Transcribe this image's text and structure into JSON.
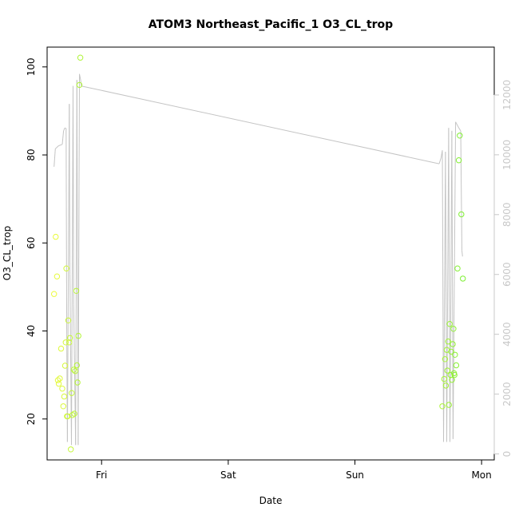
{
  "chart_data": {
    "type": "scatter",
    "title": "ATOM3 Northeast_Pacific_1 O3_CL_trop",
    "xlabel": "Date",
    "ylabel": "O3_CL_trop",
    "x_ticks": [
      "Fri",
      "Sat",
      "Sun",
      "Mon"
    ],
    "x_tick_values_days": [
      0,
      1,
      2,
      3
    ],
    "xlim_days": [
      -0.43,
      3.1
    ],
    "ylim": [
      10.7,
      104.5
    ],
    "y_ticks": [
      20,
      40,
      60,
      80,
      100
    ],
    "y2lim": [
      -200,
      13600
    ],
    "y2_ticks": [
      0,
      2000,
      4000,
      6000,
      8000,
      10000,
      12000
    ],
    "grid": false,
    "series": [
      {
        "kind": "points",
        "axis": "left",
        "points": [
          {
            "x": -0.375,
            "y": 48.4
          },
          {
            "x": -0.362,
            "y": 61.4
          },
          {
            "x": -0.352,
            "y": 52.4
          },
          {
            "x": -0.345,
            "y": 28.8
          },
          {
            "x": -0.338,
            "y": 28.0
          },
          {
            "x": -0.33,
            "y": 29.2
          },
          {
            "x": -0.32,
            "y": 36.0
          },
          {
            "x": -0.31,
            "y": 26.9
          },
          {
            "x": -0.302,
            "y": 22.9
          },
          {
            "x": -0.295,
            "y": 25.1
          },
          {
            "x": -0.288,
            "y": 32.1
          },
          {
            "x": -0.283,
            "y": 37.4
          },
          {
            "x": -0.278,
            "y": 54.2
          },
          {
            "x": -0.273,
            "y": 20.6
          },
          {
            "x": -0.268,
            "y": 20.6
          },
          {
            "x": -0.263,
            "y": 42.4
          },
          {
            "x": -0.255,
            "y": 37.4
          },
          {
            "x": -0.25,
            "y": 38.4
          },
          {
            "x": -0.243,
            "y": 13.1
          },
          {
            "x": -0.236,
            "y": 25.9
          },
          {
            "x": -0.23,
            "y": 20.9
          },
          {
            "x": -0.22,
            "y": 31.2
          },
          {
            "x": -0.215,
            "y": 21.2
          },
          {
            "x": -0.208,
            "y": 30.9
          },
          {
            "x": -0.2,
            "y": 49.1
          },
          {
            "x": -0.195,
            "y": 32.2
          },
          {
            "x": -0.19,
            "y": 28.3
          },
          {
            "x": -0.183,
            "y": 38.9
          },
          {
            "x": -0.175,
            "y": 95.9
          },
          {
            "x": -0.168,
            "y": 102.1
          },
          {
            "x": 2.69,
            "y": 22.9
          },
          {
            "x": 2.705,
            "y": 29.1
          },
          {
            "x": 2.712,
            "y": 33.6
          },
          {
            "x": 2.718,
            "y": 27.6
          },
          {
            "x": 2.725,
            "y": 35.7
          },
          {
            "x": 2.73,
            "y": 31.0
          },
          {
            "x": 2.736,
            "y": 37.6
          },
          {
            "x": 2.742,
            "y": 23.2
          },
          {
            "x": 2.748,
            "y": 41.6
          },
          {
            "x": 2.755,
            "y": 30.0
          },
          {
            "x": 2.76,
            "y": 35.3
          },
          {
            "x": 2.766,
            "y": 28.9
          },
          {
            "x": 2.772,
            "y": 37.0
          },
          {
            "x": 2.778,
            "y": 40.5
          },
          {
            "x": 2.782,
            "y": 30.4
          },
          {
            "x": 2.786,
            "y": 30.0
          },
          {
            "x": 2.79,
            "y": 34.6
          },
          {
            "x": 2.8,
            "y": 32.2
          },
          {
            "x": 2.81,
            "y": 54.2
          },
          {
            "x": 2.82,
            "y": 78.8
          },
          {
            "x": 2.828,
            "y": 84.4
          },
          {
            "x": 2.84,
            "y": 66.5
          },
          {
            "x": 2.852,
            "y": 51.9
          }
        ]
      },
      {
        "kind": "line",
        "axis": "right",
        "points": [
          [
            -0.375,
            9600
          ],
          [
            -0.365,
            10200
          ],
          [
            -0.34,
            10300
          ],
          [
            -0.31,
            10350
          ],
          [
            -0.3,
            10800
          ],
          [
            -0.29,
            10900
          ],
          [
            -0.28,
            10880
          ],
          [
            -0.275,
            4000
          ],
          [
            -0.27,
            400
          ],
          [
            -0.255,
            11700
          ],
          [
            -0.25,
            6000
          ],
          [
            -0.238,
            300
          ],
          [
            -0.225,
            12300
          ],
          [
            -0.22,
            5000
          ],
          [
            -0.205,
            300
          ],
          [
            -0.195,
            12500
          ],
          [
            -0.185,
            300
          ],
          [
            -0.175,
            12700
          ],
          [
            -0.165,
            12500
          ],
          [
            -0.16,
            12300
          ],
          [
            2.665,
            9700
          ],
          [
            2.68,
            9900
          ],
          [
            2.69,
            10150
          ],
          [
            2.7,
            400
          ],
          [
            2.715,
            10100
          ],
          [
            2.725,
            400
          ],
          [
            2.74,
            10900
          ],
          [
            2.75,
            400
          ],
          [
            2.765,
            10800
          ],
          [
            2.775,
            500
          ],
          [
            2.795,
            11100
          ],
          [
            2.82,
            10900
          ],
          [
            2.835,
            10800
          ],
          [
            2.845,
            6800
          ],
          [
            2.85,
            6600
          ]
        ]
      }
    ]
  }
}
